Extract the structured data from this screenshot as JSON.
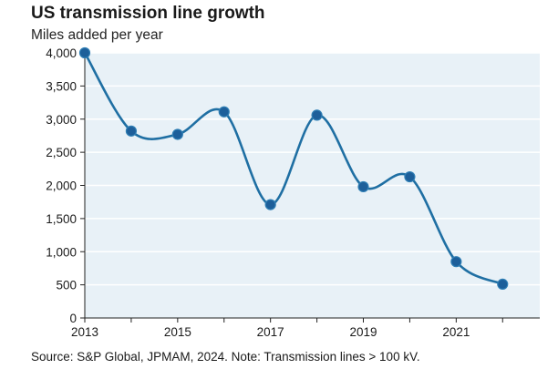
{
  "chart_data": {
    "type": "line",
    "title": "US transmission line growth",
    "subtitle": "Miles added per year",
    "source": "Source: S&P Global, JPMAM, 2024. Note: Transmission lines > 100 kV.",
    "xlabel": "",
    "ylabel": "",
    "x": [
      2013,
      2014,
      2015,
      2016,
      2017,
      2018,
      2019,
      2020,
      2021,
      2022
    ],
    "values": [
      4000,
      2820,
      2770,
      3110,
      1710,
      3060,
      1980,
      2130,
      850,
      510
    ],
    "xlim": [
      2013,
      2022.8
    ],
    "ylim": [
      0,
      4000
    ],
    "x_ticks": [
      "2013",
      "2015",
      "2017",
      "2019",
      "2021"
    ],
    "x_tick_values": [
      2013,
      2015,
      2017,
      2019,
      2021
    ],
    "y_ticks": [
      "0",
      "500",
      "1,000",
      "1,500",
      "2,000",
      "2,500",
      "3,000",
      "3,500",
      "4,000"
    ],
    "y_tick_values": [
      0,
      500,
      1000,
      1500,
      2000,
      2500,
      3000,
      3500,
      4000
    ],
    "grid": "horizontal",
    "colors": {
      "line": "#1f6fa3",
      "marker": "#1d5f9a",
      "plot_bg": "#e8f1f7",
      "grid": "#ffffff",
      "axis": "#222222"
    }
  }
}
